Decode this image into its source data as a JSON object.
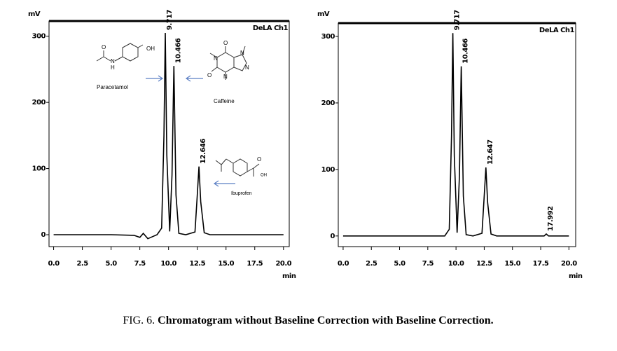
{
  "chart_data": [
    {
      "type": "line",
      "y_label": "mV",
      "x_label": "min",
      "channel": "DeLA Ch1",
      "xlim": [
        -0.4,
        20.5
      ],
      "ylim": [
        -18,
        323
      ],
      "xticks": [
        {
          "value": 0,
          "label": "0.0"
        },
        {
          "value": 2.5,
          "label": "2.5"
        },
        {
          "value": 5,
          "label": "5.0"
        },
        {
          "value": 7.5,
          "label": "7.5"
        },
        {
          "value": 10,
          "label": "10.0"
        },
        {
          "value": 12.5,
          "label": "12.5"
        },
        {
          "value": 15,
          "label": "15.0"
        },
        {
          "value": 17.5,
          "label": "17.5"
        },
        {
          "value": 20,
          "label": "20.0"
        }
      ],
      "yticks": [
        0,
        100,
        200,
        300
      ],
      "x": [
        0,
        2.5,
        5,
        7,
        7.5,
        7.8,
        8.2,
        8.6,
        9.0,
        9.4,
        9.6,
        9.717,
        9.85,
        10.1,
        10.3,
        10.466,
        10.65,
        10.9,
        11.5,
        12.3,
        12.5,
        12.646,
        12.8,
        13.1,
        13.6,
        15,
        17.5,
        20
      ],
      "series": [
        {
          "color": "#000000",
          "values": [
            0,
            0,
            0,
            -1,
            -4,
            2,
            -6,
            -3,
            0,
            10,
            150,
            305,
            120,
            5,
            90,
            255,
            60,
            2,
            0,
            4,
            60,
            103,
            50,
            3,
            0,
            0,
            0,
            0
          ]
        }
      ],
      "peak_labels": [
        9.717,
        10.466,
        12.646
      ],
      "compounds": [
        {
          "name": "Paracetamol",
          "atoms": [
            "OH",
            "N",
            "H",
            "O"
          ]
        },
        {
          "name": "Caffeine",
          "atoms": [
            "O",
            "N",
            "N",
            "N",
            "N",
            "O"
          ]
        },
        {
          "name": "Ibuprofen",
          "atoms": [
            "O",
            "OH"
          ]
        }
      ]
    },
    {
      "type": "line",
      "y_label": "mV",
      "x_label": "min",
      "channel": "DeLA Ch1",
      "xlim": [
        -0.43,
        20.6
      ],
      "ylim": [
        -16,
        320
      ],
      "xticks": [
        {
          "value": 0,
          "label": "0.0"
        },
        {
          "value": 2.5,
          "label": "2.5"
        },
        {
          "value": 5,
          "label": "5.0"
        },
        {
          "value": 7.5,
          "label": "7.5"
        },
        {
          "value": 10,
          "label": "10.0"
        },
        {
          "value": 12.5,
          "label": "12.5"
        },
        {
          "value": 15,
          "label": "15.0"
        },
        {
          "value": 17.5,
          "label": "17.5"
        },
        {
          "value": 20,
          "label": "20.0"
        }
      ],
      "yticks": [
        0,
        100,
        200,
        300
      ],
      "x": [
        0,
        2.5,
        5,
        7.5,
        9.0,
        9.4,
        9.6,
        9.717,
        9.85,
        10.1,
        10.3,
        10.466,
        10.65,
        10.9,
        11.5,
        12.3,
        12.5,
        12.647,
        12.8,
        13.1,
        13.6,
        15,
        17.8,
        17.992,
        18.2,
        20
      ],
      "series": [
        {
          "color": "#000000",
          "values": [
            0,
            0,
            0,
            0,
            0,
            10,
            150,
            305,
            120,
            5,
            90,
            255,
            60,
            2,
            0,
            4,
            60,
            103,
            50,
            3,
            0,
            0,
            0,
            3,
            0,
            0
          ]
        }
      ],
      "peak_labels": [
        9.717,
        10.466,
        12.647,
        17.992
      ]
    }
  ],
  "caption": {
    "label": "FIG. 6.",
    "text": "Chromatogram without Baseline Correction with Baseline Correction."
  }
}
